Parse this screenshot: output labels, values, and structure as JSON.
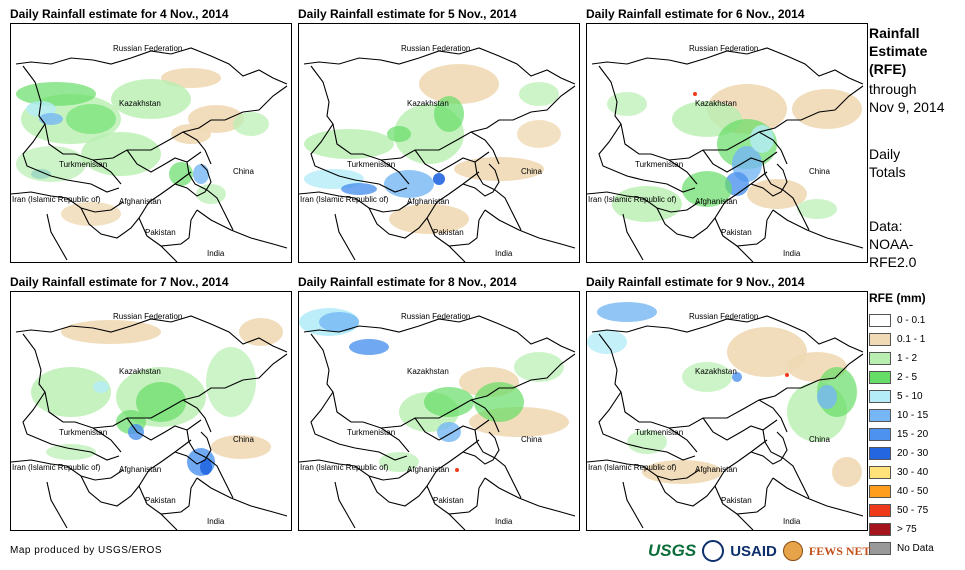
{
  "panels": [
    {
      "title": "Daily Rainfall estimate for 4 Nov., 2014"
    },
    {
      "title": "Daily Rainfall estimate for 5 Nov., 2014"
    },
    {
      "title": "Daily Rainfall estimate for 6 Nov., 2014"
    },
    {
      "title": "Daily Rainfall estimate for 7 Nov., 2014"
    },
    {
      "title": "Daily Rainfall estimate for 8 Nov., 2014"
    },
    {
      "title": "Daily Rainfall estimate for 9 Nov., 2014"
    }
  ],
  "map_labels": {
    "russia": "Russian Federation",
    "kazakhstan": "Kazakhstan",
    "turkmenistan": "Turkmenistan",
    "iran": "Iran (Islamic Republic of)",
    "afghanistan": "Afghanistan",
    "pakistan": "Pakistan",
    "china": "China",
    "india": "India"
  },
  "side_info": {
    "title_line1": "Rainfall",
    "title_line2": "Estimate",
    "title_line3": "(RFE)",
    "through": "through",
    "date": "Nov 9, 2014",
    "totals_line1": "Daily",
    "totals_line2": "Totals",
    "data_line1": "Data:",
    "data_line2": "NOAA-",
    "data_line3": "RFE2.0"
  },
  "legend": {
    "title": "RFE (mm)",
    "items": [
      {
        "label": "0 - 0.1",
        "color": "#ffffff"
      },
      {
        "label": "0.1 - 1",
        "color": "#f0d9b5"
      },
      {
        "label": "1 - 2",
        "color": "#b8efb0"
      },
      {
        "label": "2 - 5",
        "color": "#66dd66"
      },
      {
        "label": "5 - 10",
        "color": "#b4ecf8"
      },
      {
        "label": "10 - 15",
        "color": "#76b6f4"
      },
      {
        "label": "15 - 20",
        "color": "#4c92ee"
      },
      {
        "label": "20 - 30",
        "color": "#2466e0"
      },
      {
        "label": "30 - 40",
        "color": "#ffe37a"
      },
      {
        "label": "40 - 50",
        "color": "#ff9e1e"
      },
      {
        "label": "50 - 75",
        "color": "#ee3a1a"
      },
      {
        "label": "> 75",
        "color": "#a5141c"
      },
      {
        "label": "No Data",
        "color": "#999999"
      }
    ]
  },
  "credit": "Map produced by USGS/EROS",
  "logos": {
    "usgs": "USGS",
    "usaid": "USAID",
    "fews": "FEWS NET"
  }
}
